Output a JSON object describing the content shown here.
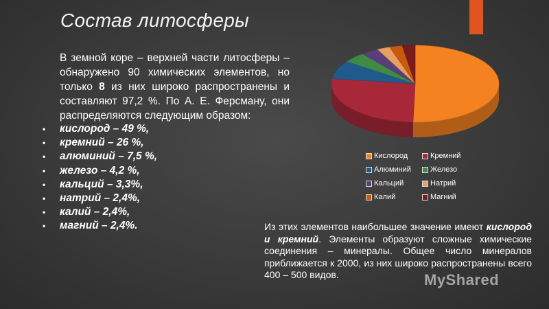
{
  "slide": {
    "title": "Состав литосферы",
    "accent_color": "#e0541f",
    "intro": {
      "before": "В земной коре – верхней части литосферы – обнаружено 90 химических элементов, но только ",
      "bold": "8",
      "after": " из них широко распространены и составляют 97,2 %. По А. Е. Ферсману, они распределяются следующим образом:"
    },
    "list": [
      "кислород – 49 %,",
      "кремний – 26 %,",
      "алюминий – 7,5 %,",
      "железо – 4,2 %,",
      "кальций – 3,3%,",
      "натрий – 2,4%,",
      "калий – 2,4%,",
      "магний – 2,4%."
    ],
    "bottom": {
      "before": "Из этих элементов наибольшее значение имеют ",
      "bold": "кислород и кремний",
      "after": ". Элементы образуют сложные химические соединения – минералы. Общее число минералов приближается к 2000, из них широко распространены всего 400 – 500 видов."
    },
    "watermark": "MyShared"
  },
  "chart_data": {
    "type": "pie",
    "title": "",
    "categories": [
      "Кислород",
      "Кремний",
      "Алюминий",
      "Железо",
      "Кальций",
      "Натрий",
      "Калий",
      "Магний"
    ],
    "values": [
      49,
      26,
      7.5,
      4.2,
      3.3,
      2.4,
      2.4,
      2.4
    ],
    "colors": [
      "#f58220",
      "#a8283a",
      "#1e5b8c",
      "#3f8a45",
      "#5a3d7a",
      "#e8a060",
      "#c85a10",
      "#7a1c1c"
    ],
    "style": "3d",
    "legend_position": "bottom"
  }
}
